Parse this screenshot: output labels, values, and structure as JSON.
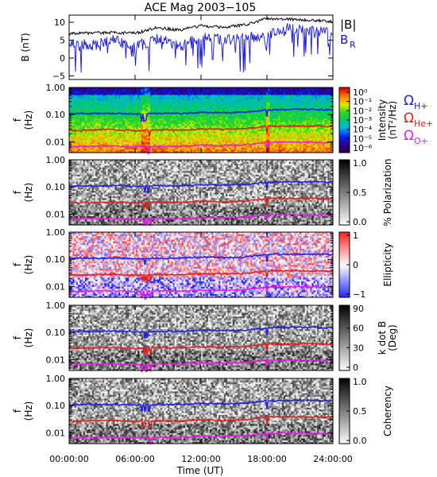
{
  "title": "ACE Mag 2003−105",
  "x_axis": {
    "ticks": [
      "00:00:00",
      "06:00:00",
      "12:00:00",
      "18:00:00",
      "24:00:00"
    ],
    "tick_hours": [
      0,
      6,
      12,
      18,
      24
    ],
    "label": "Time (UT)"
  },
  "legend_top": {
    "b_total": "|B|",
    "b_r": "B",
    "b_r_sub": "R"
  },
  "legend_gyro": [
    {
      "symbol": "Ω",
      "sub": "H+",
      "color": "#1f1fe6"
    },
    {
      "symbol": "Ω",
      "sub": "He+",
      "color": "#e01f1f"
    },
    {
      "symbol": "Ω",
      "sub": "O+",
      "color": "#e61fe6"
    }
  ],
  "colors": {
    "b_total": "#000000",
    "b_r": "#1212e8",
    "h_plus": "#1f1fe6",
    "he_plus": "#e01f1f",
    "o_plus": "#e61fe6"
  },
  "panels": [
    {
      "kind": "line",
      "ylabel": "B",
      "yunit": "(nT)",
      "yticks": [
        "10",
        "5",
        "0",
        "−5"
      ],
      "ytick_values": [
        10,
        5,
        0,
        -5
      ],
      "ylim": [
        -6,
        12
      ]
    },
    {
      "kind": "spectrogram",
      "scheme": "rainbow",
      "ylabel": "f",
      "yunit": "(Hz)",
      "yticks": [
        "1.00",
        "0.10",
        "0.01"
      ],
      "cbar_label": "Intensity",
      "cbar_unit": "(nT²/Hz)",
      "cbar_ticks": [
        "10⁰",
        "10⁻¹",
        "10⁻²",
        "10⁻³",
        "10⁻⁴",
        "10⁻⁵",
        "10⁻⁶"
      ],
      "cbar_range": [
        -6.5,
        0.5
      ]
    },
    {
      "kind": "spectrogram",
      "scheme": "gray",
      "ylabel": "f",
      "yunit": "(Hz)",
      "yticks": [
        "1.00",
        "0.10",
        "0.01"
      ],
      "cbar_label": "% Polarization",
      "cbar_unit": "",
      "cbar_ticks": [
        "1.0",
        "0.5",
        "0.0"
      ],
      "cbar_range": [
        0,
        1
      ]
    },
    {
      "kind": "spectrogram",
      "scheme": "redblue",
      "ylabel": "f",
      "yunit": "(Hz)",
      "yticks": [
        "1.00",
        "0.10",
        "0.01"
      ],
      "cbar_label": "Ellipticity",
      "cbar_unit": "",
      "cbar_ticks": [
        "1",
        "0",
        "−1"
      ],
      "cbar_range": [
        -1,
        1
      ]
    },
    {
      "kind": "spectrogram",
      "scheme": "gray",
      "ylabel": "f",
      "yunit": "(Hz)",
      "yticks": [
        "1.00",
        "0.10",
        "0.01"
      ],
      "cbar_label": "k dot B",
      "cbar_unit": "(Deg)",
      "cbar_ticks": [
        "90",
        "60",
        "30",
        "0"
      ],
      "cbar_range": [
        0,
        90
      ]
    },
    {
      "kind": "spectrogram",
      "scheme": "gray",
      "ylabel": "f",
      "yunit": "(Hz)",
      "yticks": [
        "1.00",
        "0.10",
        "0.01"
      ],
      "cbar_label": "Coherency",
      "cbar_unit": "",
      "cbar_ticks": [
        "1.0",
        "0.5",
        "0.0"
      ],
      "cbar_range": [
        0,
        1
      ]
    }
  ],
  "chart_data": {
    "type": "line",
    "title": "ACE Mag 2003−105",
    "xlabel": "Time (UT)",
    "x_hours": [
      0,
      2,
      4,
      6,
      8,
      10,
      12,
      14,
      16,
      18,
      20,
      22,
      24
    ],
    "magnetic_field": {
      "ylabel": "B (nT)",
      "ylim": [
        -6,
        12
      ],
      "series": [
        {
          "name": "|B|",
          "values": [
            6.8,
            7.0,
            7.1,
            6.9,
            8.5,
            7.8,
            9.0,
            8.6,
            9.3,
            11.0,
            10.8,
            10.6,
            10.2
          ]
        },
        {
          "name": "B_R",
          "values": [
            4.0,
            3.5,
            5.0,
            3.0,
            5.5,
            3.5,
            6.0,
            5.0,
            5.5,
            6.5,
            8.5,
            7.5,
            7.0
          ]
        }
      ]
    },
    "gyrofrequency_hz": {
      "ylim": [
        0.004,
        1.0
      ],
      "yscale": "log",
      "series": [
        {
          "name": "Ω H+",
          "values": [
            0.107,
            0.11,
            0.112,
            0.105,
            0.11,
            0.11,
            0.12,
            0.118,
            0.122,
            0.15,
            0.155,
            0.155,
            0.15
          ]
        },
        {
          "name": "Ω He+",
          "values": [
            0.026,
            0.027,
            0.028,
            0.026,
            0.028,
            0.027,
            0.03,
            0.029,
            0.03,
            0.038,
            0.038,
            0.038,
            0.037
          ]
        },
        {
          "name": "Ω O+",
          "values": [
            0.0066,
            0.0068,
            0.007,
            0.0065,
            0.0069,
            0.0068,
            0.0075,
            0.0073,
            0.0077,
            0.0095,
            0.0097,
            0.0096,
            0.0093
          ]
        }
      ]
    },
    "colorbars": [
      {
        "name": "Intensity (nT²/Hz)",
        "scale": "log",
        "range": [
          1e-06,
          1
        ]
      },
      {
        "name": "% Polarization",
        "range": [
          0,
          1
        ]
      },
      {
        "name": "Ellipticity",
        "range": [
          -1,
          1
        ]
      },
      {
        "name": "k dot B (Deg)",
        "range": [
          0,
          90
        ]
      },
      {
        "name": "Coherency",
        "range": [
          0,
          1
        ]
      }
    ]
  }
}
